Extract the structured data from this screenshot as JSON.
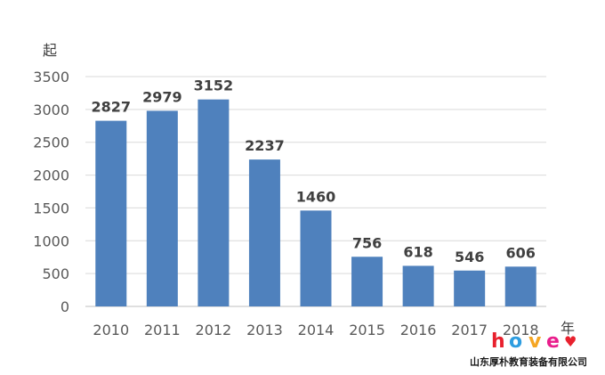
{
  "chart_data": {
    "type": "bar",
    "categories": [
      "2010",
      "2011",
      "2012",
      "2013",
      "2014",
      "2015",
      "2016",
      "2017",
      "2018"
    ],
    "values": [
      2827,
      2979,
      3152,
      2237,
      1460,
      756,
      618,
      546,
      606
    ],
    "y_unit": "起",
    "x_unit": "年",
    "ylim": [
      0,
      3500
    ],
    "yticks": [
      0,
      500,
      1000,
      1500,
      2000,
      2500,
      3000,
      3500
    ],
    "grid": true,
    "bar_color": "#4F81BD"
  },
  "watermark": {
    "logo_text": "hove",
    "logo_colors": [
      "#E8212E",
      "#2E9DE0",
      "#F5A623",
      "#E91E8C"
    ],
    "company": "山东厚朴教育装备有限公司"
  }
}
